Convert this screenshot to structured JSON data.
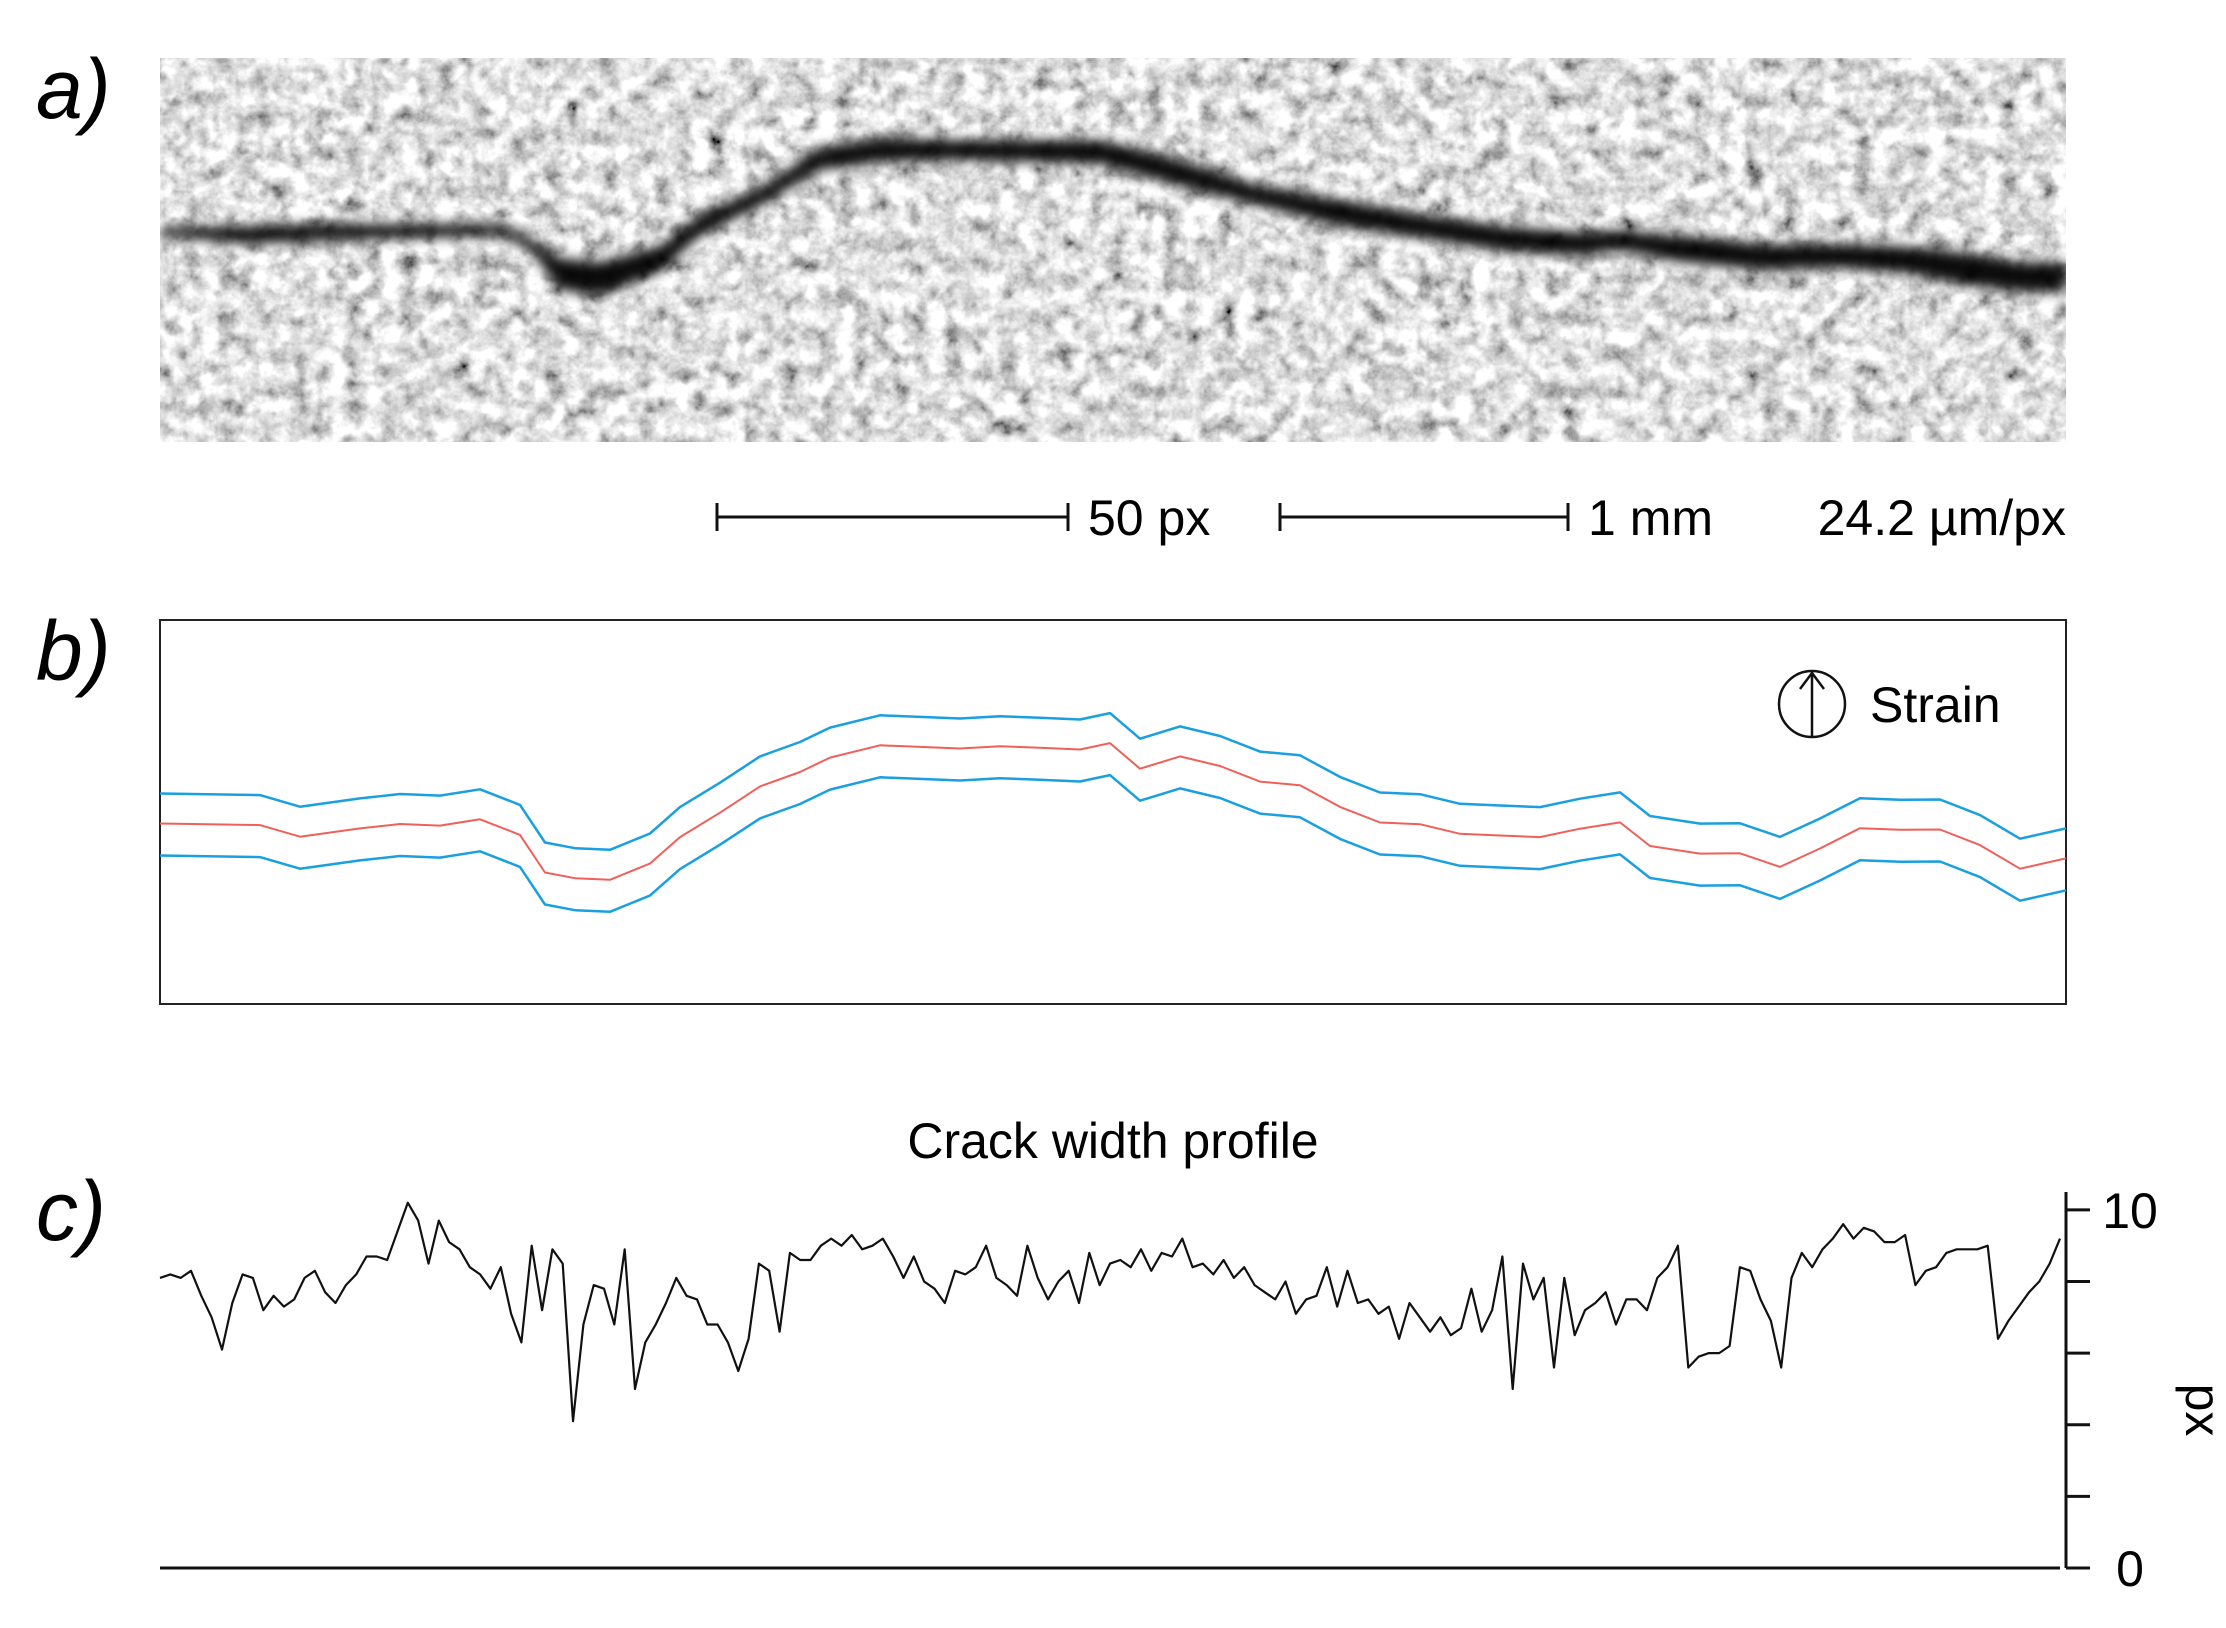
{
  "panels": {
    "a": {
      "label": "a)",
      "scale_bar_px": "50 px",
      "scale_bar_mm": "1 mm",
      "resolution": "24.2 µm/px"
    },
    "b": {
      "label": "b)",
      "annotation": "Strain",
      "annotation_icon": "arrow-up-in-circle-icon",
      "colors": {
        "centerline": "#f0605a",
        "edges": "#1a9fe0"
      }
    },
    "c": {
      "label": "c)",
      "title": "Crack width profile",
      "ylabel": "px"
    }
  },
  "chart_data": {
    "type": "line",
    "title": "Crack width profile",
    "xlabel": "",
    "ylabel": "px",
    "ylim": [
      0,
      10.5
    ],
    "yticks": [
      0,
      2,
      4,
      6,
      8,
      10
    ],
    "ytick_labels": [
      "0",
      "",
      "",
      "",
      "",
      "10"
    ],
    "series": [
      {
        "values": [
          8.1,
          8.2,
          8.1,
          8.3,
          7.6,
          7.0,
          6.1,
          7.4,
          8.2,
          8.1,
          7.2,
          7.6,
          7.3,
          7.5,
          8.1,
          8.3,
          7.7,
          7.4,
          7.9,
          8.2,
          8.7,
          8.7,
          8.6,
          9.4,
          10.2,
          9.7,
          8.5,
          9.7,
          9.1,
          8.9,
          8.4,
          8.2,
          7.8,
          8.4,
          7.1,
          6.3,
          9.0,
          7.2,
          8.9,
          8.5,
          4.1,
          6.8,
          7.9,
          7.8,
          6.8,
          8.9,
          5.0,
          6.3,
          6.8,
          7.4,
          8.1,
          7.6,
          7.5,
          6.8,
          6.8,
          6.3,
          5.5,
          6.4,
          8.5,
          8.3,
          6.6,
          8.8,
          8.6,
          8.6,
          9.0,
          9.2,
          9.0,
          9.3,
          8.9,
          9.0,
          9.2,
          8.7,
          8.1,
          8.7,
          8.0,
          7.8,
          7.4,
          8.3,
          8.2,
          8.4,
          9.0,
          8.1,
          7.9,
          7.6,
          9.0,
          8.1,
          7.5,
          8.0,
          8.3,
          7.4,
          8.8,
          7.9,
          8.5,
          8.6,
          8.4,
          8.9,
          8.3,
          8.8,
          8.7,
          9.2,
          8.4,
          8.5,
          8.2,
          8.6,
          8.1,
          8.4,
          7.9,
          7.7,
          7.5,
          8.0,
          7.1,
          7.5,
          7.6,
          8.4,
          7.3,
          8.3,
          7.4,
          7.5,
          7.1,
          7.3,
          6.4,
          7.4,
          7.0,
          6.6,
          7.0,
          6.5,
          6.7,
          7.8,
          6.6,
          7.2,
          8.7,
          5.0,
          8.5,
          7.5,
          8.1,
          5.6,
          8.1,
          6.5,
          7.2,
          7.4,
          7.7,
          6.8,
          7.5,
          7.5,
          7.2,
          8.1,
          8.4,
          9.0,
          5.6,
          5.9,
          6.0,
          6.0,
          6.2,
          8.4,
          8.3,
          7.5,
          6.9,
          5.6,
          8.1,
          8.8,
          8.4,
          8.9,
          9.2,
          9.6,
          9.2,
          9.5,
          9.4,
          9.1,
          9.1,
          9.3,
          7.9,
          8.3,
          8.4,
          8.8,
          8.9,
          8.9,
          8.9,
          9.0,
          6.4,
          6.9,
          7.3,
          7.7,
          8.0,
          8.5,
          9.2
        ],
        "color": "#111111"
      }
    ]
  }
}
